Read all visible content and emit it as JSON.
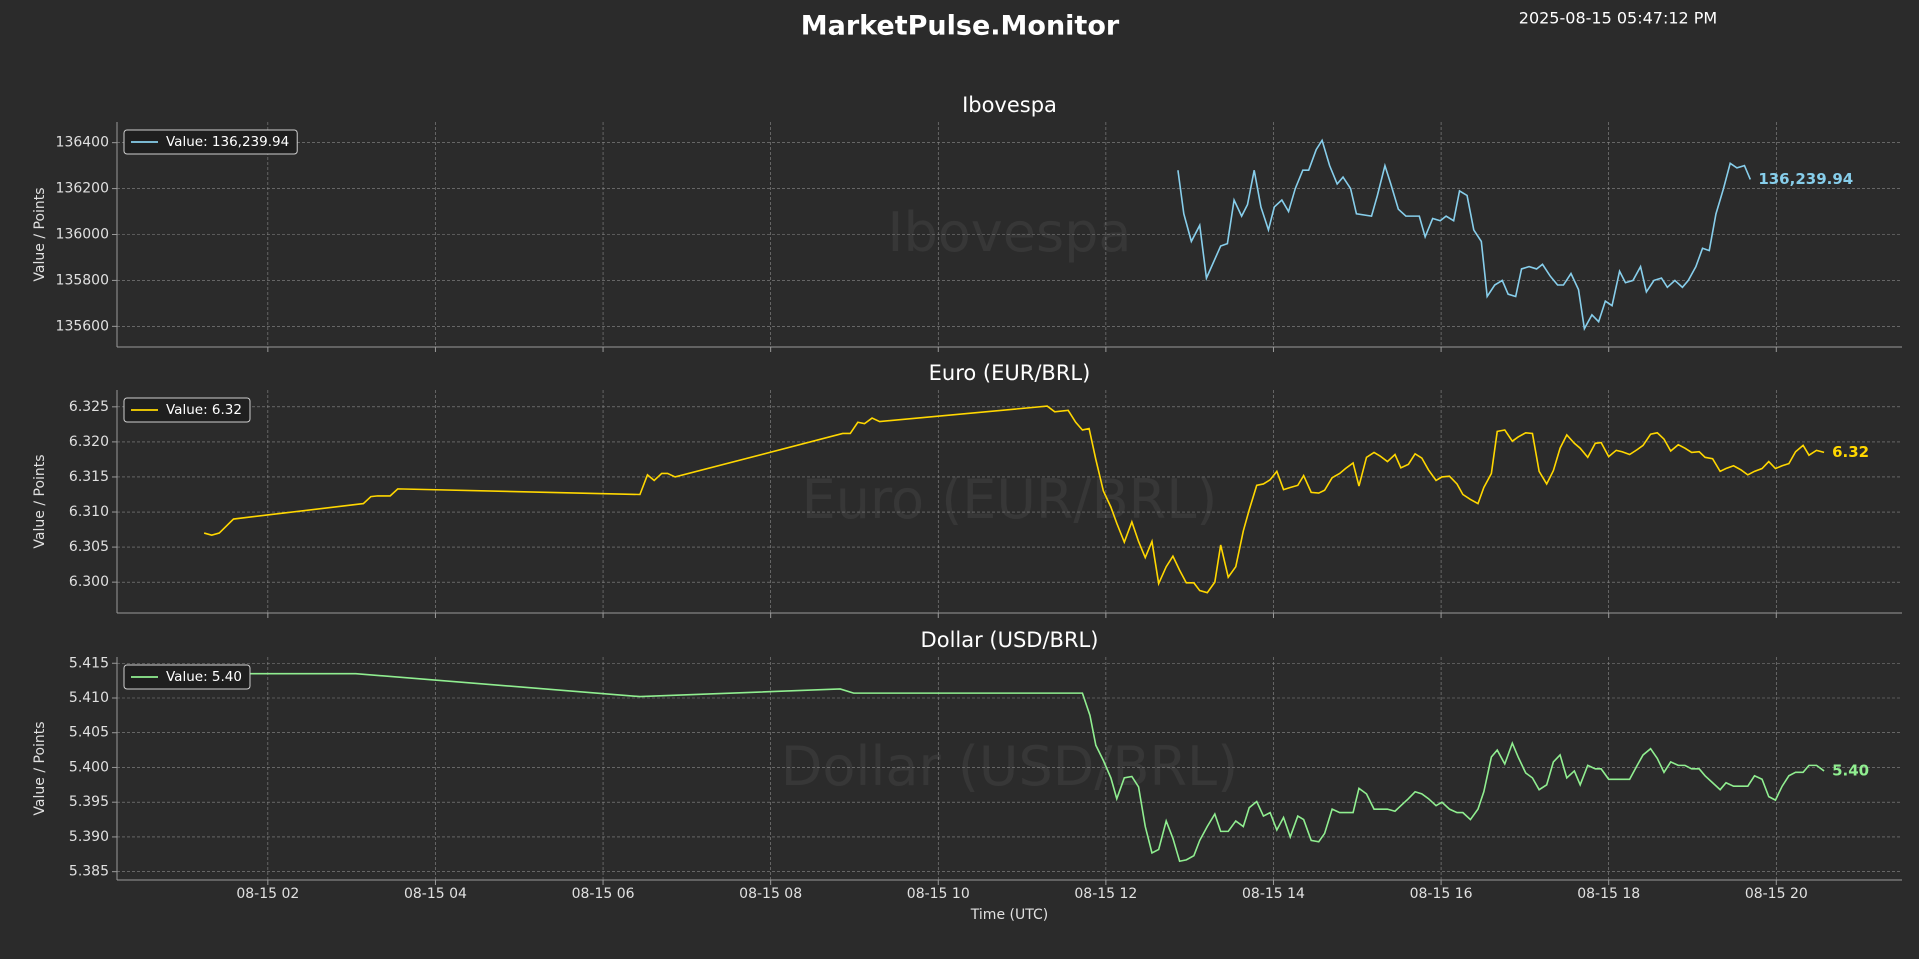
{
  "header": {
    "title": "MarketPulse.Monitor",
    "timestamp": "2025-08-15 05:47:12 PM"
  },
  "chart_data": [
    {
      "type": "line",
      "title": "Ibovespa",
      "ylabel": "Value / Points",
      "xlim": [
        0.2,
        21.5
      ],
      "ylim": [
        135510,
        136490
      ],
      "yticks": [
        135600,
        135800,
        136000,
        136200,
        136400
      ],
      "grid": true,
      "legend": "upper left",
      "x": [
        12.86,
        12.93,
        13.02,
        13.12,
        13.2,
        13.37,
        13.45,
        13.53,
        13.62,
        13.69,
        13.77,
        13.85,
        13.94,
        14.01,
        14.1,
        14.18,
        14.26,
        14.35,
        14.42,
        14.51,
        14.58,
        14.67,
        14.76,
        14.83,
        14.92,
        14.99,
        15.17,
        15.24,
        15.33,
        15.4,
        15.49,
        15.58,
        15.74,
        15.81,
        15.9,
        15.99,
        16.06,
        16.15,
        16.22,
        16.31,
        16.39,
        16.48,
        16.55,
        16.64,
        16.73,
        16.8,
        16.89,
        16.96,
        17.05,
        17.14,
        17.21,
        17.3,
        17.39,
        17.46,
        17.55,
        17.64,
        17.71,
        17.8,
        17.88,
        17.96,
        18.04,
        18.13,
        18.2,
        18.29,
        18.38,
        18.45,
        18.54,
        18.63,
        18.7,
        18.79,
        18.88,
        18.95,
        19.04,
        19.12,
        19.2,
        19.28,
        19.37,
        19.45,
        19.53,
        19.62,
        19.69
      ],
      "series": [
        {
          "name": "Value: 136,239.94",
          "color": "#87ceeb",
          "end_label": "136,239.94",
          "values": [
            136280,
            136090,
            135970,
            136040,
            135810,
            135950,
            135960,
            136150,
            136080,
            136130,
            136280,
            136120,
            136020,
            136120,
            136150,
            136100,
            136200,
            136280,
            136280,
            136370,
            136410,
            136300,
            136220,
            136250,
            136200,
            136090,
            136080,
            136170,
            136300,
            136220,
            136110,
            136080,
            136080,
            135990,
            136070,
            136060,
            136080,
            136060,
            136190,
            136170,
            136020,
            135970,
            135730,
            135780,
            135800,
            135740,
            135730,
            135850,
            135860,
            135850,
            135870,
            135820,
            135780,
            135780,
            135830,
            135760,
            135590,
            135650,
            135620,
            135710,
            135690,
            135840,
            135790,
            135800,
            135860,
            135750,
            135800,
            135810,
            135770,
            135800,
            135770,
            135800,
            135860,
            135940,
            135930,
            136090,
            136200,
            136310,
            136290,
            136300,
            136239.94
          ]
        }
      ]
    },
    {
      "type": "line",
      "title": "Euro (EUR/BRL)",
      "ylabel": "Value / Points",
      "xlim": [
        0.2,
        21.5
      ],
      "ylim": [
        6.2956,
        6.3274
      ],
      "yticks": [
        {
          "value": 6.3,
          "label": "6.300"
        },
        6.305,
        {
          "value": 6.31,
          "label": "6.310"
        },
        6.315,
        {
          "value": 6.32,
          "label": "6.320"
        },
        6.325
      ],
      "grid": true,
      "legend": "upper left",
      "x": [
        1.24,
        1.33,
        1.42,
        1.59,
        3.14,
        3.23,
        3.31,
        3.46,
        3.55,
        6.44,
        6.53,
        6.61,
        6.7,
        6.77,
        6.86,
        8.86,
        8.95,
        9.04,
        9.12,
        9.21,
        9.3,
        11.3,
        11.39,
        11.55,
        11.64,
        11.72,
        11.8,
        11.88,
        11.97,
        12.06,
        12.13,
        12.22,
        12.31,
        12.39,
        12.47,
        12.55,
        12.63,
        12.72,
        12.8,
        12.88,
        12.96,
        13.05,
        13.12,
        13.21,
        13.3,
        13.37,
        13.46,
        13.55,
        13.64,
        13.71,
        13.8,
        13.88,
        13.96,
        14.04,
        14.12,
        14.2,
        14.29,
        14.36,
        14.45,
        14.54,
        14.61,
        14.7,
        14.79,
        14.86,
        14.95,
        15.02,
        15.11,
        15.2,
        15.27,
        15.36,
        15.45,
        15.52,
        15.61,
        15.69,
        15.77,
        15.85,
        15.94,
        16.01,
        16.1,
        16.19,
        16.26,
        16.35,
        16.44,
        16.51,
        16.6,
        16.67,
        16.76,
        16.85,
        16.92,
        17.01,
        17.09,
        17.17,
        17.26,
        17.34,
        17.42,
        17.5,
        17.59,
        17.66,
        17.75,
        17.84,
        17.91,
        18.0,
        18.09,
        18.16,
        18.25,
        18.34,
        18.41,
        18.5,
        18.58,
        18.66,
        18.74,
        18.83,
        18.91,
        18.99,
        19.08,
        19.15,
        19.24,
        19.33,
        19.4,
        19.49,
        19.58,
        19.66,
        19.74,
        19.83,
        19.91,
        19.99,
        20.07,
        20.15,
        20.23,
        20.32,
        20.39,
        20.48,
        20.57
      ],
      "series": [
        {
          "name": "Value: 6.32",
          "color": "#ffd700",
          "end_label": "6.32",
          "values": [
            6.307,
            6.3067,
            6.307,
            6.309,
            6.3112,
            6.3122,
            6.3123,
            6.3123,
            6.3133,
            6.3125,
            6.3153,
            6.3145,
            6.3155,
            6.3155,
            6.315,
            6.3212,
            6.3212,
            6.3228,
            6.3226,
            6.3234,
            6.3229,
            6.3251,
            6.3243,
            6.3245,
            6.3228,
            6.3217,
            6.3219,
            6.3175,
            6.313,
            6.3107,
            6.3084,
            6.3057,
            6.3086,
            6.3058,
            6.3035,
            6.3058,
            6.2998,
            6.3022,
            6.3037,
            6.3017,
            6.2999,
            6.2999,
            6.2988,
            6.2985,
            6.3,
            6.3053,
            6.3007,
            6.3022,
            6.3073,
            6.3103,
            6.3138,
            6.314,
            6.3146,
            6.3158,
            6.3132,
            6.3135,
            6.3138,
            6.3152,
            6.3128,
            6.3127,
            6.3131,
            6.3149,
            6.3155,
            6.3162,
            6.317,
            6.3137,
            6.3178,
            6.3185,
            6.318,
            6.3172,
            6.3182,
            6.3163,
            6.3168,
            6.3183,
            6.3177,
            6.316,
            6.3145,
            6.315,
            6.3151,
            6.314,
            6.3125,
            6.3118,
            6.3112,
            6.3135,
            6.3155,
            6.3215,
            6.3217,
            6.3201,
            6.3207,
            6.3213,
            6.3212,
            6.3158,
            6.314,
            6.3159,
            6.3191,
            6.321,
            6.3198,
            6.3191,
            6.3178,
            6.3198,
            6.3199,
            6.3179,
            6.3188,
            6.3186,
            6.3182,
            6.3189,
            6.3195,
            6.3211,
            6.3213,
            6.3204,
            6.3187,
            6.3196,
            6.3191,
            6.3185,
            6.3186,
            6.3178,
            6.3176,
            6.3158,
            6.3162,
            6.3166,
            6.316,
            6.3153,
            6.3158,
            6.3162,
            6.3172,
            6.3162,
            6.3166,
            6.3169,
            6.3186,
            6.3195,
            6.3181,
            6.3188,
            6.3185
          ]
        }
      ]
    },
    {
      "type": "line",
      "title": "Dollar (USD/BRL)",
      "ylabel": "Value / Points",
      "xlabel": "Time (UTC)",
      "xlim": [
        0.2,
        21.5
      ],
      "xticks": [
        {
          "value": 2,
          "label": "08-15 02"
        },
        {
          "value": 4,
          "label": "08-15 04"
        },
        {
          "value": 6,
          "label": "08-15 06"
        },
        {
          "value": 8,
          "label": "08-15 08"
        },
        {
          "value": 10,
          "label": "08-15 10"
        },
        {
          "value": 12,
          "label": "08-15 12"
        },
        {
          "value": 14,
          "label": "08-15 14"
        },
        {
          "value": 16,
          "label": "08-15 16"
        },
        {
          "value": 18,
          "label": "08-15 18"
        },
        {
          "value": 20,
          "label": "08-15 20"
        }
      ],
      "ylim": [
        5.3838,
        5.4159
      ],
      "yticks": [
        5.385,
        {
          "value": 5.39,
          "label": "5.390"
        },
        5.395,
        {
          "value": 5.4,
          "label": "5.400"
        },
        5.405,
        {
          "value": 5.41,
          "label": "5.410"
        },
        5.415
      ],
      "grid": true,
      "legend": "upper left",
      "x": [
        0.42,
        3.05,
        6.44,
        8.83,
        8.99,
        11.72,
        11.81,
        11.88,
        11.97,
        12.06,
        12.13,
        12.22,
        12.31,
        12.39,
        12.47,
        12.55,
        12.63,
        12.72,
        12.8,
        12.88,
        12.96,
        13.05,
        13.12,
        13.21,
        13.3,
        13.37,
        13.46,
        13.55,
        13.64,
        13.71,
        13.8,
        13.88,
        13.96,
        14.04,
        14.12,
        14.2,
        14.29,
        14.36,
        14.45,
        14.54,
        14.61,
        14.7,
        14.79,
        14.86,
        14.95,
        15.02,
        15.11,
        15.2,
        15.27,
        15.36,
        15.45,
        15.52,
        15.61,
        15.69,
        15.77,
        15.85,
        15.94,
        16.01,
        16.1,
        16.19,
        16.26,
        16.35,
        16.44,
        16.51,
        16.6,
        16.67,
        16.76,
        16.85,
        16.92,
        17.01,
        17.09,
        17.17,
        17.26,
        17.34,
        17.42,
        17.5,
        17.59,
        17.66,
        17.75,
        17.84,
        17.91,
        18.0,
        18.09,
        18.16,
        18.25,
        18.34,
        18.41,
        18.5,
        18.58,
        18.66,
        18.74,
        18.83,
        18.91,
        18.99,
        19.08,
        19.15,
        19.24,
        19.33,
        19.4,
        19.49,
        19.58,
        19.66,
        19.74,
        19.83,
        19.91,
        19.99,
        20.07,
        20.15,
        20.23,
        20.32,
        20.39,
        20.48,
        20.57
      ],
      "series": [
        {
          "name": "Value: 5.40",
          "color": "#90ee90",
          "end_label": "5.40",
          "values": [
            5.4135,
            5.4135,
            5.4102,
            5.4113,
            5.4107,
            5.4107,
            5.4075,
            5.4032,
            5.401,
            5.3985,
            5.3955,
            5.3985,
            5.3987,
            5.3972,
            5.3915,
            5.3877,
            5.3882,
            5.3923,
            5.3898,
            5.3865,
            5.3867,
            5.3873,
            5.3895,
            5.3915,
            5.3933,
            5.3908,
            5.3908,
            5.3923,
            5.3915,
            5.3942,
            5.3951,
            5.393,
            5.3935,
            5.391,
            5.3928,
            5.39,
            5.393,
            5.3925,
            5.3895,
            5.3893,
            5.3905,
            5.394,
            5.3935,
            5.3935,
            5.3935,
            5.397,
            5.3962,
            5.394,
            5.394,
            5.394,
            5.3937,
            5.3945,
            5.3955,
            5.3965,
            5.3962,
            5.3955,
            5.3945,
            5.395,
            5.394,
            5.3935,
            5.3935,
            5.3925,
            5.394,
            5.3965,
            5.4015,
            5.4025,
            5.4005,
            5.4035,
            5.4015,
            5.3992,
            5.3985,
            5.3968,
            5.3975,
            5.4008,
            5.4018,
            5.3985,
            5.3995,
            5.3975,
            5.4003,
            5.3998,
            5.3998,
            5.3983,
            5.3983,
            5.3983,
            5.3983,
            5.4003,
            5.4018,
            5.4027,
            5.4013,
            5.3993,
            5.4008,
            5.4003,
            5.4003,
            5.3998,
            5.3998,
            5.3988,
            5.3978,
            5.3968,
            5.3978,
            5.3973,
            5.3973,
            5.3973,
            5.3988,
            5.3983,
            5.3958,
            5.3953,
            5.3973,
            5.3988,
            5.3993,
            5.3993,
            5.4003,
            5.4003,
            5.3995
          ]
        }
      ]
    }
  ]
}
